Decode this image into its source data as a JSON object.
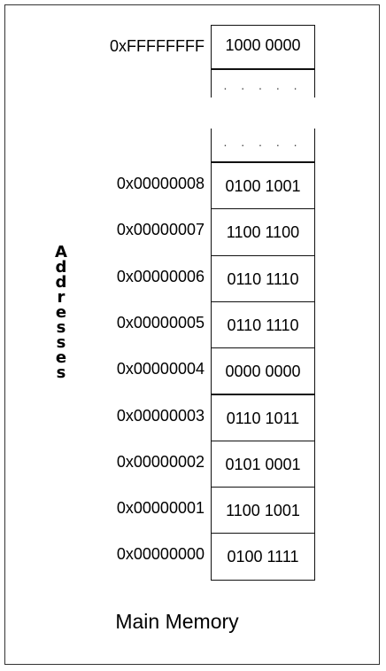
{
  "caption": "Main Memory",
  "side_label": "Addresses",
  "top_row": {
    "address": "0xFFFFFFFF",
    "value": "1000  0000"
  },
  "ellipsis": ". . . . .",
  "rows": [
    {
      "address": "0x00000008",
      "value": "0100 1001"
    },
    {
      "address": "0x00000007",
      "value": "1100 1100"
    },
    {
      "address": "0x00000006",
      "value": "0110 1110"
    },
    {
      "address": "0x00000005",
      "value": "0110 1110"
    },
    {
      "address": "0x00000004",
      "value": "0000 0000"
    },
    {
      "address": "0x00000003",
      "value": "0110 1011"
    },
    {
      "address": "0x00000002",
      "value": "0101 0001"
    },
    {
      "address": "0x00000001",
      "value": "1100 1001"
    },
    {
      "address": "0x00000000",
      "value": "0100 1111"
    }
  ]
}
